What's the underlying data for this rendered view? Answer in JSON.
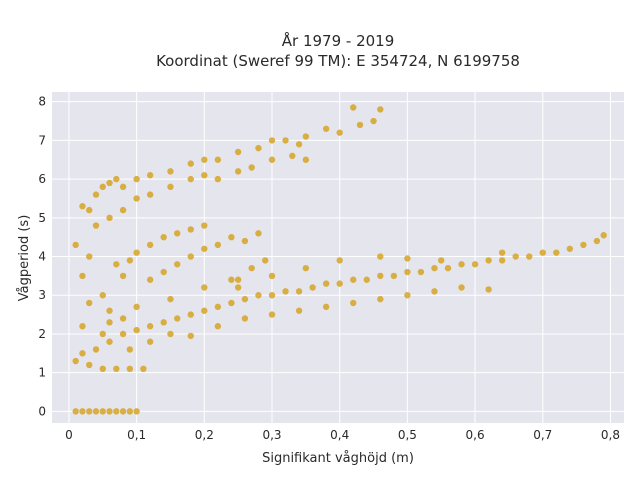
{
  "chart_data": {
    "type": "scatter",
    "title_line1": "År 1979 - 2019",
    "title_line2": "Koordinat (Sweref 99 TM): E 354724, N 6199758",
    "xlabel": "Signifikant våghöjd (m)",
    "ylabel": "Vågperiod (s)",
    "xlim": [
      -0.025,
      0.82
    ],
    "ylim": [
      -0.3,
      8.25
    ],
    "x_ticks": [
      0,
      0.1,
      0.2,
      0.3,
      0.4,
      0.5,
      0.6,
      0.7,
      0.8
    ],
    "x_tick_labels": [
      "0",
      "0,1",
      "0,2",
      "0,3",
      "0,4",
      "0,5",
      "0,6",
      "0,7",
      "0,8"
    ],
    "y_ticks": [
      0,
      1,
      2,
      3,
      4,
      5,
      6,
      7,
      8
    ],
    "y_tick_labels": [
      "0",
      "1",
      "2",
      "3",
      "4",
      "5",
      "6",
      "7",
      "8"
    ],
    "grid": true,
    "marker_color": "#D4A017",
    "background": "#E5E5EE",
    "points": [
      [
        0.01,
        0
      ],
      [
        0.02,
        0
      ],
      [
        0.03,
        0
      ],
      [
        0.04,
        0
      ],
      [
        0.05,
        0
      ],
      [
        0.06,
        0
      ],
      [
        0.07,
        0
      ],
      [
        0.08,
        0
      ],
      [
        0.09,
        0
      ],
      [
        0.1,
        0
      ],
      [
        0.01,
        1.3
      ],
      [
        0.02,
        1.5
      ],
      [
        0.03,
        2.8
      ],
      [
        0.02,
        3.5
      ],
      [
        0.02,
        5.3
      ],
      [
        0.01,
        4.3
      ],
      [
        0.03,
        4.0
      ],
      [
        0.02,
        2.2
      ],
      [
        0.03,
        5.2
      ],
      [
        0.04,
        5.6
      ],
      [
        0.05,
        5.8
      ],
      [
        0.06,
        5.9
      ],
      [
        0.07,
        6.0
      ],
      [
        0.08,
        5.8
      ],
      [
        0.1,
        6.0
      ],
      [
        0.12,
        6.1
      ],
      [
        0.15,
        6.2
      ],
      [
        0.18,
        6.4
      ],
      [
        0.2,
        6.5
      ],
      [
        0.22,
        6.5
      ],
      [
        0.25,
        6.7
      ],
      [
        0.28,
        6.8
      ],
      [
        0.3,
        7.0
      ],
      [
        0.32,
        7.0
      ],
      [
        0.35,
        7.1
      ],
      [
        0.38,
        7.3
      ],
      [
        0.4,
        7.2
      ],
      [
        0.43,
        7.4
      ],
      [
        0.45,
        7.5
      ],
      [
        0.46,
        7.8
      ],
      [
        0.42,
        7.85
      ],
      [
        0.34,
        6.9
      ],
      [
        0.04,
        4.8
      ],
      [
        0.06,
        5.0
      ],
      [
        0.08,
        5.2
      ],
      [
        0.1,
        5.5
      ],
      [
        0.12,
        5.6
      ],
      [
        0.15,
        5.8
      ],
      [
        0.18,
        6.0
      ],
      [
        0.2,
        6.1
      ],
      [
        0.22,
        6.0
      ],
      [
        0.25,
        6.2
      ],
      [
        0.27,
        6.3
      ],
      [
        0.3,
        6.5
      ],
      [
        0.33,
        6.6
      ],
      [
        0.35,
        6.5
      ],
      [
        0.05,
        3.0
      ],
      [
        0.06,
        2.6
      ],
      [
        0.07,
        3.8
      ],
      [
        0.08,
        3.5
      ],
      [
        0.09,
        3.9
      ],
      [
        0.1,
        4.1
      ],
      [
        0.12,
        4.3
      ],
      [
        0.14,
        4.5
      ],
      [
        0.16,
        4.6
      ],
      [
        0.18,
        4.7
      ],
      [
        0.2,
        4.8
      ],
      [
        0.12,
        3.4
      ],
      [
        0.14,
        3.6
      ],
      [
        0.16,
        3.8
      ],
      [
        0.18,
        4.0
      ],
      [
        0.2,
        4.2
      ],
      [
        0.22,
        4.3
      ],
      [
        0.24,
        4.5
      ],
      [
        0.26,
        4.4
      ],
      [
        0.28,
        4.6
      ],
      [
        0.29,
        3.9
      ],
      [
        0.27,
        3.7
      ],
      [
        0.25,
        3.2
      ],
      [
        0.24,
        3.4
      ],
      [
        0.03,
        1.2
      ],
      [
        0.05,
        1.1
      ],
      [
        0.07,
        1.1
      ],
      [
        0.09,
        1.1
      ],
      [
        0.11,
        1.1
      ],
      [
        0.04,
        1.6
      ],
      [
        0.06,
        1.8
      ],
      [
        0.08,
        2.0
      ],
      [
        0.1,
        2.1
      ],
      [
        0.12,
        2.2
      ],
      [
        0.14,
        2.3
      ],
      [
        0.16,
        2.4
      ],
      [
        0.18,
        2.5
      ],
      [
        0.2,
        2.6
      ],
      [
        0.22,
        2.7
      ],
      [
        0.24,
        2.8
      ],
      [
        0.26,
        2.9
      ],
      [
        0.28,
        3.0
      ],
      [
        0.3,
        3.0
      ],
      [
        0.32,
        3.1
      ],
      [
        0.34,
        3.1
      ],
      [
        0.36,
        3.2
      ],
      [
        0.38,
        3.3
      ],
      [
        0.4,
        3.3
      ],
      [
        0.42,
        3.4
      ],
      [
        0.44,
        3.4
      ],
      [
        0.46,
        3.5
      ],
      [
        0.48,
        3.5
      ],
      [
        0.5,
        3.6
      ],
      [
        0.52,
        3.6
      ],
      [
        0.54,
        3.7
      ],
      [
        0.56,
        3.7
      ],
      [
        0.58,
        3.8
      ],
      [
        0.6,
        3.8
      ],
      [
        0.62,
        3.9
      ],
      [
        0.64,
        3.9
      ],
      [
        0.66,
        4.0
      ],
      [
        0.68,
        4.0
      ],
      [
        0.7,
        4.1
      ],
      [
        0.72,
        4.1
      ],
      [
        0.74,
        4.2
      ],
      [
        0.76,
        4.3
      ],
      [
        0.78,
        4.4
      ],
      [
        0.79,
        4.55
      ],
      [
        0.64,
        4.1
      ],
      [
        0.55,
        3.9
      ],
      [
        0.5,
        3.95
      ],
      [
        0.46,
        4.0
      ],
      [
        0.4,
        3.9
      ],
      [
        0.35,
        3.7
      ],
      [
        0.3,
        3.5
      ],
      [
        0.25,
        3.4
      ],
      [
        0.2,
        3.2
      ],
      [
        0.15,
        2.9
      ],
      [
        0.1,
        2.7
      ],
      [
        0.08,
        2.4
      ],
      [
        0.06,
        2.3
      ],
      [
        0.05,
        2.0
      ],
      [
        0.22,
        2.2
      ],
      [
        0.26,
        2.4
      ],
      [
        0.3,
        2.5
      ],
      [
        0.34,
        2.6
      ],
      [
        0.38,
        2.7
      ],
      [
        0.42,
        2.8
      ],
      [
        0.46,
        2.9
      ],
      [
        0.5,
        3.0
      ],
      [
        0.54,
        3.1
      ],
      [
        0.58,
        3.2
      ],
      [
        0.62,
        3.15
      ],
      [
        0.15,
        2.0
      ],
      [
        0.18,
        1.95
      ],
      [
        0.12,
        1.8
      ],
      [
        0.09,
        1.6
      ]
    ]
  }
}
